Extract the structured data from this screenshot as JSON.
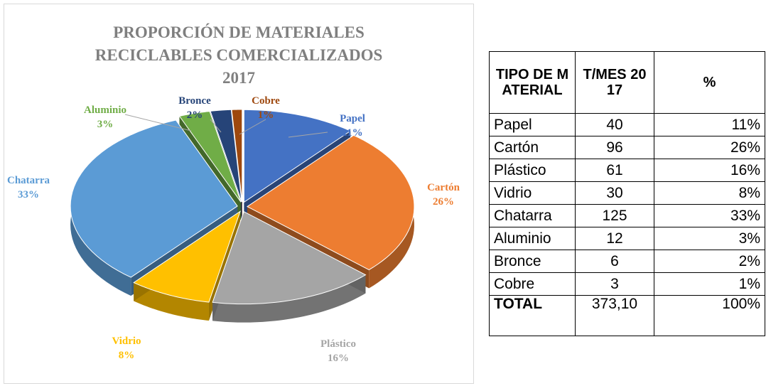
{
  "chart_data": {
    "type": "pie",
    "title": "PROPORCIÓN DE MATERIALES RECICLABLES COMERCIALIZADOS 2017",
    "categories": [
      "Papel",
      "Cartón",
      "Plástico",
      "Vidrio",
      "Chatarra",
      "Aluminio",
      "Bronce",
      "Cobre"
    ],
    "values": [
      11,
      26,
      16,
      8,
      33,
      3,
      2,
      1
    ],
    "value_labels": [
      "11%",
      "26%",
      "16%",
      "8%",
      "33%",
      "3%",
      "2%",
      "1%"
    ],
    "colors": [
      "#4472c4",
      "#ed7d31",
      "#a5a5a5",
      "#ffc000",
      "#5b9bd5",
      "#70ad47",
      "#264478",
      "#9e480e"
    ]
  },
  "table": {
    "header": [
      "TIPO DE MATERIAL",
      "T/MES 2017",
      "%"
    ],
    "rows": [
      [
        "Papel",
        "40",
        "11%"
      ],
      [
        "Cartón",
        "96",
        "26%"
      ],
      [
        "Plástico",
        "61",
        "16%"
      ],
      [
        "Vidrio",
        "30",
        "8%"
      ],
      [
        "Chatarra",
        "125",
        "33%"
      ],
      [
        "Aluminio",
        "12",
        "3%"
      ],
      [
        "Bronce",
        "6",
        "2%"
      ],
      [
        "Cobre",
        "3",
        "1%"
      ],
      [
        "TOTAL",
        "373,10",
        "100%"
      ]
    ]
  }
}
